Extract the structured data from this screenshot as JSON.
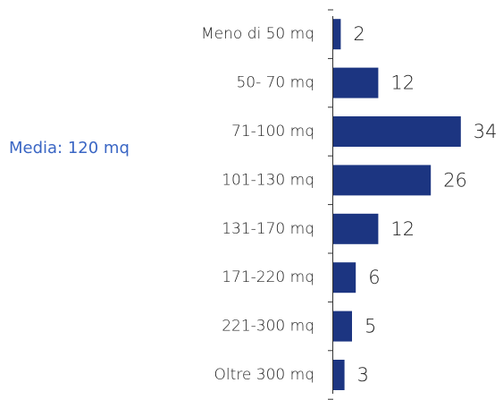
{
  "chart_data": {
    "type": "bar",
    "orientation": "horizontal",
    "annotation": "Media: 120 mq",
    "categories": [
      "Meno di 50 mq",
      "50- 70 mq",
      "71-100 mq",
      "101-130 mq",
      "131-170 mq",
      "171-220 mq",
      "221-300 mq",
      "Oltre 300 mq"
    ],
    "values": [
      2,
      12,
      34,
      26,
      12,
      6,
      5,
      3
    ],
    "color": "#1c3581"
  }
}
